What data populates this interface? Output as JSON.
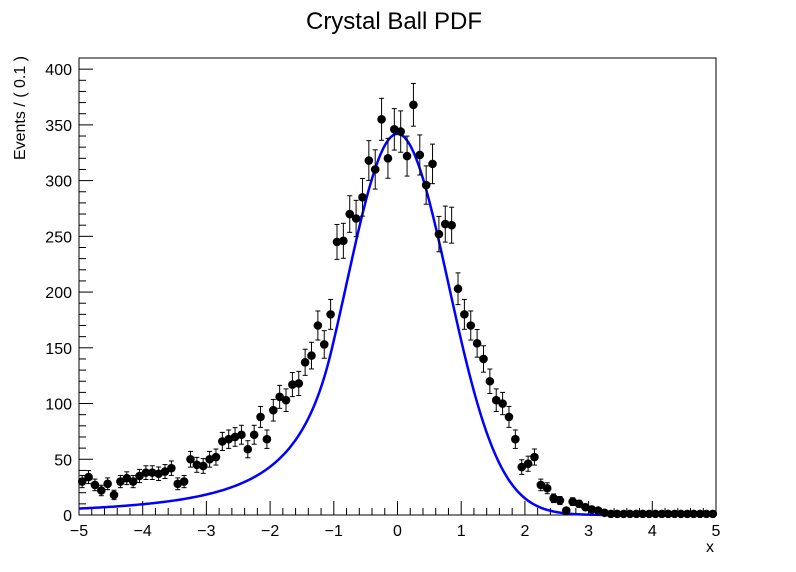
{
  "chart_data": {
    "type": "scatter",
    "title": "Crystal Ball PDF",
    "xlabel": "x",
    "ylabel": "Events / ( 0.1 )",
    "xlim": [
      -5,
      5
    ],
    "ylim": [
      0,
      410
    ],
    "x_ticks": [
      -5,
      -4,
      -3,
      -2,
      -1,
      0,
      1,
      2,
      3,
      4,
      5
    ],
    "y_ticks": [
      0,
      50,
      100,
      150,
      200,
      250,
      300,
      350,
      400
    ],
    "x_tick_labels": [
      "−5",
      "−4",
      "−3",
      "−2",
      "−1",
      "0",
      "1",
      "2",
      "3",
      "4",
      "5"
    ],
    "y_tick_labels": [
      "0",
      "50",
      "100",
      "150",
      "200",
      "250",
      "300",
      "350",
      "400"
    ],
    "grid": false,
    "colors": {
      "points": "#000000",
      "fit": "#0000ff",
      "frame": "#000000"
    },
    "series": [
      {
        "type": "scatter_errorbar",
        "x": [
          -4.95,
          -4.85,
          -4.75,
          -4.65,
          -4.55,
          -4.45,
          -4.35,
          -4.25,
          -4.15,
          -4.05,
          -3.95,
          -3.85,
          -3.75,
          -3.65,
          -3.55,
          -3.45,
          -3.35,
          -3.25,
          -3.15,
          -3.05,
          -2.95,
          -2.85,
          -2.75,
          -2.65,
          -2.55,
          -2.45,
          -2.35,
          -2.25,
          -2.15,
          -2.05,
          -1.95,
          -1.85,
          -1.75,
          -1.65,
          -1.55,
          -1.45,
          -1.35,
          -1.25,
          -1.15,
          -1.05,
          -0.95,
          -0.85,
          -0.75,
          -0.65,
          -0.55,
          -0.45,
          -0.35,
          -0.25,
          -0.15,
          -0.05,
          0.05,
          0.15,
          0.25,
          0.35,
          0.45,
          0.55,
          0.65,
          0.75,
          0.85,
          0.95,
          1.05,
          1.15,
          1.25,
          1.35,
          1.45,
          1.55,
          1.65,
          1.75,
          1.85,
          1.95,
          2.05,
          2.15,
          2.25,
          2.35,
          2.45,
          2.55,
          2.65,
          2.75,
          2.85,
          2.95,
          3.05,
          3.15,
          3.25,
          3.35,
          3.45,
          3.55,
          3.65,
          3.75,
          3.85,
          3.95,
          4.05,
          4.15,
          4.25,
          4.35,
          4.45,
          4.55,
          4.65,
          4.75,
          4.85,
          4.95
        ],
        "y": [
          30,
          34,
          27,
          22,
          28,
          18,
          30,
          33,
          30,
          35,
          38,
          38,
          37,
          39,
          42,
          28,
          30,
          50,
          45,
          44,
          50,
          52,
          66,
          68,
          70,
          72,
          59,
          72,
          88,
          68,
          94,
          106,
          103,
          117,
          118,
          137,
          143,
          170,
          153,
          180,
          245,
          246,
          270,
          266,
          285,
          318,
          310,
          355,
          320,
          346,
          344,
          322,
          368,
          323,
          296,
          315,
          252,
          261,
          260,
          203,
          180,
          170,
          154,
          140,
          120,
          103,
          100,
          88,
          68,
          43,
          46,
          52,
          27,
          24,
          15,
          13,
          4,
          12,
          10,
          7,
          5,
          4,
          2,
          1,
          1,
          1,
          1,
          1,
          1,
          1,
          1,
          1,
          1,
          1,
          1,
          1,
          1,
          1,
          1,
          1
        ]
      },
      {
        "type": "line",
        "curve": {
          "model": "crystal_ball",
          "mean": 0.0,
          "sigma": 0.8,
          "alpha": 1.3,
          "n": 2.6,
          "peak": 342
        }
      }
    ]
  }
}
